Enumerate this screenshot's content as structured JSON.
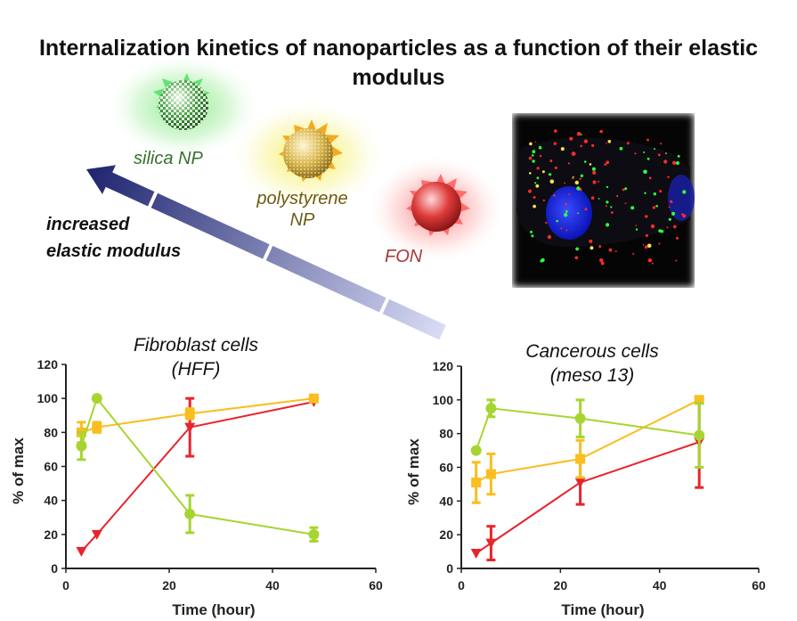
{
  "title": "Internalization kinetics of nanoparticles as a function of their elastic modulus",
  "labels": {
    "silica": "silica NP",
    "polystyrene_line1": "polystyrene",
    "polystyrene_line2": "NP",
    "fon": "FON",
    "arrow_line1": "increased",
    "arrow_line2": "elastic  modulus"
  },
  "colors": {
    "red": "#e8242c",
    "yellow": "#f9be1f",
    "green": "#a6d531",
    "arrow_dark": "#1e236e",
    "arrow_light": "#d8dcf5"
  },
  "chart_data": [
    {
      "type": "line",
      "title": "Fibroblast cells\n(HFF)",
      "title_line1": "Fibroblast cells",
      "title_line2": "(HFF)",
      "xlabel": "Time (hour)",
      "ylabel": "% of max",
      "xlim": [
        0,
        60
      ],
      "ylim": [
        0,
        120
      ],
      "xticks": [
        0,
        20,
        40,
        60
      ],
      "yticks": [
        0,
        20,
        40,
        60,
        80,
        100,
        120
      ],
      "series": [
        {
          "color": "#e8242c",
          "marker": "triangle-down",
          "x": [
            3,
            6,
            24,
            48
          ],
          "y": [
            10,
            20,
            83,
            98
          ],
          "err": [
            0,
            0,
            17,
            0
          ]
        },
        {
          "color": "#f9be1f",
          "marker": "square",
          "x": [
            3,
            6,
            24,
            48
          ],
          "y": [
            80,
            83,
            91,
            100
          ],
          "err": [
            6,
            3,
            3,
            1
          ]
        },
        {
          "color": "#a6d531",
          "marker": "circle",
          "x": [
            3,
            6,
            24,
            48
          ],
          "y": [
            72,
            100,
            32,
            20
          ],
          "err": [
            8,
            1,
            11,
            4
          ]
        }
      ]
    },
    {
      "type": "line",
      "title": "Cancerous cells\n(meso 13)",
      "title_line1": "Cancerous cells",
      "title_line2": "(meso 13)",
      "xlabel": "Time (hour)",
      "ylabel": "% of max",
      "xlim": [
        0,
        60
      ],
      "ylim": [
        0,
        120
      ],
      "xticks": [
        0,
        20,
        40,
        60
      ],
      "yticks": [
        0,
        20,
        40,
        60,
        80,
        100,
        120
      ],
      "series": [
        {
          "color": "#e8242c",
          "marker": "triangle-down",
          "x": [
            3,
            6,
            24,
            48
          ],
          "y": [
            9,
            15,
            51,
            75
          ],
          "err": [
            0,
            10,
            13,
            27
          ]
        },
        {
          "color": "#f9be1f",
          "marker": "square",
          "x": [
            3,
            6,
            24,
            48
          ],
          "y": [
            51,
            56,
            65,
            100
          ],
          "err": [
            12,
            12,
            11,
            0
          ]
        },
        {
          "color": "#a6d531",
          "marker": "circle",
          "x": [
            3,
            6,
            24,
            48
          ],
          "y": [
            70,
            95,
            89,
            79
          ],
          "err": [
            0,
            5,
            11,
            19
          ]
        }
      ]
    }
  ]
}
